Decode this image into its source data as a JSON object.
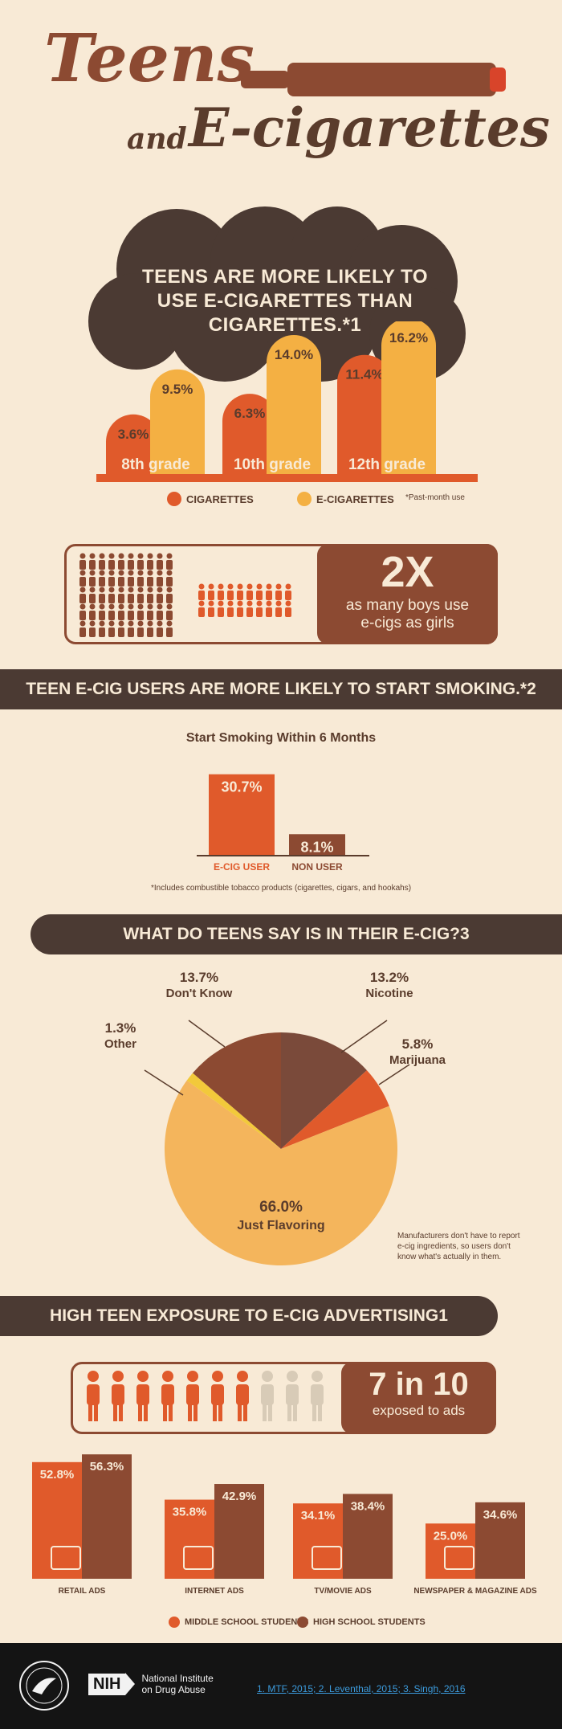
{
  "title": {
    "line1": "Teens",
    "line2a": "and",
    "line2b": "E-cigarettes"
  },
  "colors": {
    "cigarettes": "#e05a2b",
    "ecigarettes": "#f4b043",
    "dark": "#4b3a33",
    "brown": "#8c4a32",
    "bg": "#f8ead6"
  },
  "section1": {
    "heading": "TEENS ARE MORE LIKELY TO USE E-CIGARETTES THAN CIGARETTES.*1",
    "footnote": "*Past-month use",
    "legend": {
      "cigarettes": "CIGARETTES",
      "ecigarettes": "E-CIGARETTES"
    }
  },
  "boys": {
    "big": "2X",
    "text": "as many boys use e-cigs as girls"
  },
  "section2": {
    "heading": "TEEN E-CIG USERS ARE MORE LIKELY TO START SMOKING.*2",
    "subtitle": "Start Smoking Within 6 Months",
    "footnote": "*Includes combustible tobacco products (cigarettes, cigars, and hookahs)"
  },
  "section3": {
    "heading": "WHAT DO TEENS SAY IS IN THEIR E-CIG?3",
    "note": "Manufacturers don't have to report e-cig ingredients, so users don't know what's actually in them."
  },
  "section4": {
    "heading": "HIGH TEEN EXPOSURE TO E-CIG ADVERTISING1",
    "big": "7 in 10",
    "text": "exposed to ads",
    "legend": {
      "middle": "MIDDLE SCHOOL STUDENTS",
      "high": "HIGH SCHOOL STUDENTS"
    }
  },
  "footer": {
    "nih_badge": "NIH",
    "org_line1": "National Institute",
    "org_line2": "on Drug Abuse",
    "refs": "1. MTF, 2015; 2. Leventhal, 2015; 3. Singh, 2016"
  },
  "chart_data": [
    {
      "type": "bar",
      "categories": [
        "8th grade",
        "10th grade",
        "12th grade"
      ],
      "series": [
        {
          "name": "CIGARETTES",
          "values": [
            3.6,
            6.3,
            11.4
          ],
          "labels": [
            "3.6%",
            "6.3%",
            "11.4%"
          ]
        },
        {
          "name": "E-CIGARETTES",
          "values": [
            9.5,
            14.0,
            16.2
          ],
          "labels": [
            "9.5%",
            "14.0%",
            "16.2%"
          ]
        }
      ]
    },
    {
      "type": "bar",
      "title": "Start Smoking Within 6 Months",
      "categories": [
        "E-CIG USER",
        "NON USER"
      ],
      "values": [
        30.7,
        8.1
      ],
      "labels": [
        "30.7%",
        "8.1%"
      ]
    },
    {
      "type": "pie",
      "slices": [
        {
          "label": "Nicotine",
          "value": 13.2,
          "text": "13.2%"
        },
        {
          "label": "Marijuana",
          "value": 5.8,
          "text": "5.8%"
        },
        {
          "label": "Just Flavoring",
          "value": 66.0,
          "text": "66.0%"
        },
        {
          "label": "Other",
          "value": 1.3,
          "text": "1.3%"
        },
        {
          "label": "Don't Know",
          "value": 13.7,
          "text": "13.7%"
        }
      ]
    },
    {
      "type": "bar",
      "categories": [
        "RETAIL ADS",
        "INTERNET ADS",
        "TV/MOVIE ADS",
        "NEWSPAPER & MAGAZINE ADS"
      ],
      "series": [
        {
          "name": "MIDDLE SCHOOL STUDENTS",
          "values": [
            52.8,
            35.8,
            34.1,
            25.0
          ],
          "labels": [
            "52.8%",
            "35.8%",
            "34.1%",
            "25.0%"
          ]
        },
        {
          "name": "HIGH SCHOOL STUDENTS",
          "values": [
            56.3,
            42.9,
            38.4,
            34.6
          ],
          "labels": [
            "56.3%",
            "42.9%",
            "38.4%",
            "34.6%"
          ]
        }
      ]
    }
  ]
}
